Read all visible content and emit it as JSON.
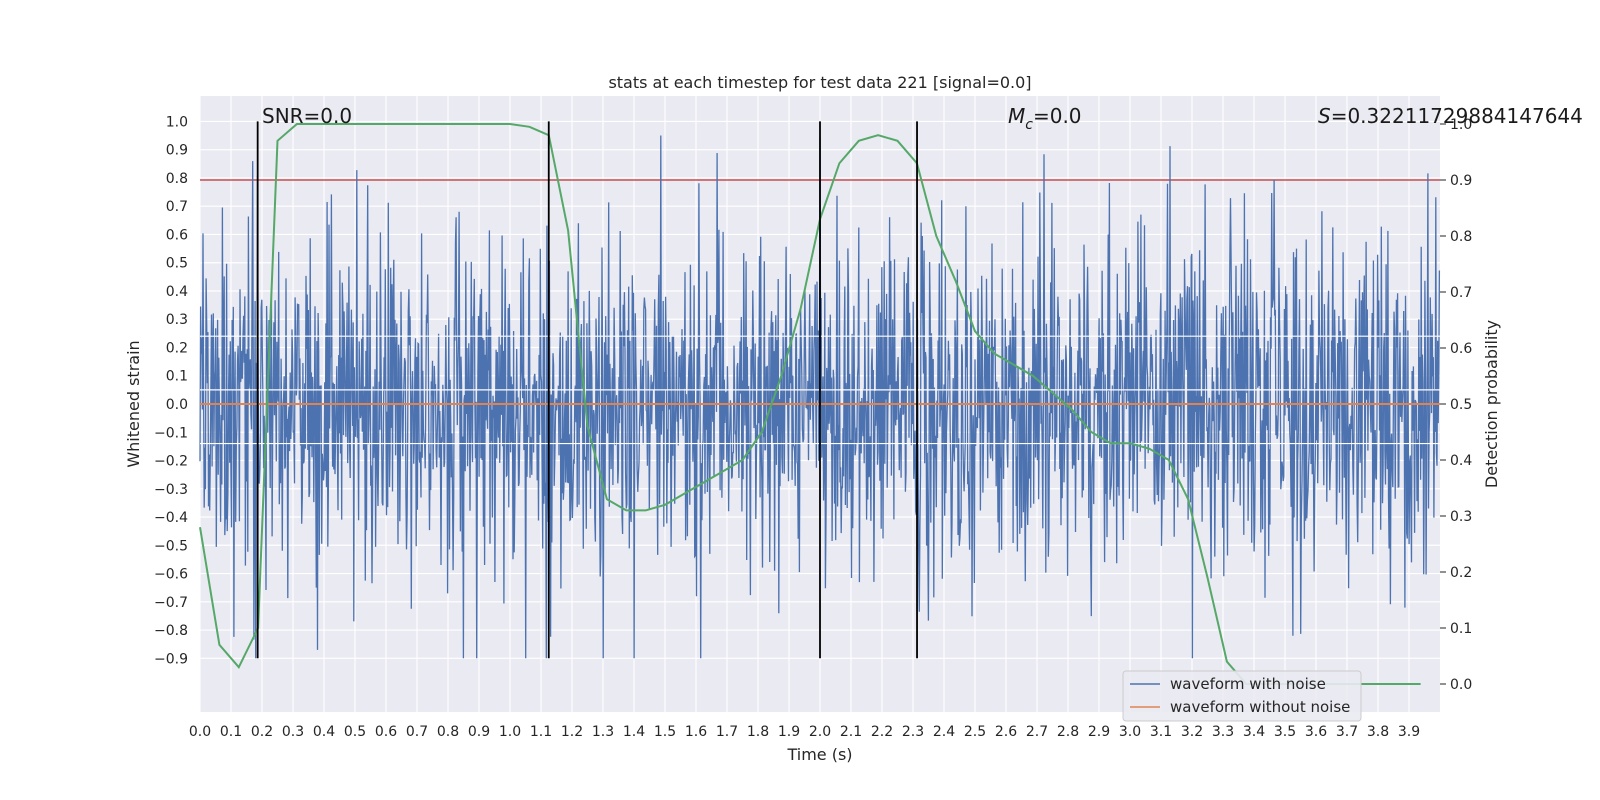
{
  "chart_data": {
    "type": "line",
    "title": "stats at each timestep for test data 221 [signal=0.0]",
    "xlabel": "Time (s)",
    "ylabel": "Whitened strain",
    "ylabel_right": "Detection probability",
    "xlim": [
      0.0,
      4.0
    ],
    "ylim": [
      -1.09,
      1.09
    ],
    "ylim_right": [
      -0.05,
      1.05
    ],
    "x_ticks": [
      "0.0",
      "0.1",
      "0.2",
      "0.3",
      "0.4",
      "0.5",
      "0.6",
      "0.7",
      "0.8",
      "0.9",
      "1.0",
      "1.1",
      "1.2",
      "1.3",
      "1.4",
      "1.5",
      "1.6",
      "1.7",
      "1.8",
      "1.9",
      "2.0",
      "2.1",
      "2.2",
      "2.3",
      "2.4",
      "2.5",
      "2.6",
      "2.7",
      "2.8",
      "2.9",
      "3.0",
      "3.1",
      "3.2",
      "3.3",
      "3.4",
      "3.5",
      "3.6",
      "3.7",
      "3.8",
      "3.9"
    ],
    "y_ticks": [
      "1.0",
      "0.9",
      "0.8",
      "0.7",
      "0.6",
      "0.5",
      "0.4",
      "0.3",
      "0.2",
      "0.1",
      "0.0",
      "−0.1",
      "−0.2",
      "−0.3",
      "−0.4",
      "−0.5",
      "−0.6",
      "−0.7",
      "−0.8",
      "−0.9"
    ],
    "y_ticks_right": [
      "1.0",
      "0.9",
      "0.8",
      "0.7",
      "0.6",
      "0.5",
      "0.4",
      "0.3",
      "0.2",
      "0.1",
      "0.0"
    ],
    "grid": true,
    "legend_position": "bottom-right",
    "series": [
      {
        "name": "waveform with noise",
        "color": "#4c72b0",
        "axis": "left",
        "sample_rate": 512,
        "amplitude_std": 0.3,
        "range": [
          -0.9,
          1.0
        ]
      },
      {
        "name": "waveform without noise",
        "color": "#dd8452",
        "axis": "left",
        "x": [
          0.0,
          4.0
        ],
        "y": [
          0.0,
          0.0
        ]
      },
      {
        "color": "#55a868",
        "axis": "right",
        "x": [
          0.0,
          0.0625,
          0.125,
          0.1875,
          0.25,
          0.3125,
          0.375,
          0.5,
          0.75,
          1.0,
          1.0625,
          1.125,
          1.1875,
          1.25,
          1.3125,
          1.375,
          1.4375,
          1.5,
          1.5625,
          1.625,
          1.6875,
          1.75,
          1.8125,
          1.875,
          1.9375,
          2.0,
          2.0625,
          2.125,
          2.1875,
          2.25,
          2.3125,
          2.375,
          2.4375,
          2.5,
          2.5625,
          2.625,
          2.6875,
          2.75,
          2.8125,
          2.875,
          2.9375,
          3.0,
          3.0625,
          3.125,
          3.1875,
          3.25,
          3.3125,
          3.375,
          3.5,
          3.75,
          3.9375
        ],
        "y": [
          0.28,
          0.07,
          0.03,
          0.1,
          0.97,
          1.0,
          1.0,
          1.0,
          1.0,
          1.0,
          0.995,
          0.98,
          0.81,
          0.46,
          0.33,
          0.31,
          0.31,
          0.32,
          0.34,
          0.36,
          0.38,
          0.4,
          0.45,
          0.55,
          0.67,
          0.83,
          0.93,
          0.97,
          0.98,
          0.97,
          0.93,
          0.8,
          0.72,
          0.63,
          0.59,
          0.57,
          0.55,
          0.52,
          0.49,
          0.45,
          0.43,
          0.43,
          0.42,
          0.4,
          0.33,
          0.19,
          0.04,
          0.0,
          0.0,
          0.0,
          0.0
        ]
      }
    ],
    "threshold_line": {
      "value": 0.9,
      "axis": "right",
      "color": "#c44e52"
    },
    "white_hlines": [
      0.24,
      0.05,
      -0.14
    ],
    "vertical_markers": [
      0.186,
      1.125,
      2.0,
      2.313
    ],
    "annotations": {
      "snr": "SNR=0.0",
      "mc_symbol": "M",
      "mc_sub": "c",
      "mc_value": "=0.0",
      "s_symbol": "S",
      "s_value": "=0.32211729884147644"
    }
  }
}
